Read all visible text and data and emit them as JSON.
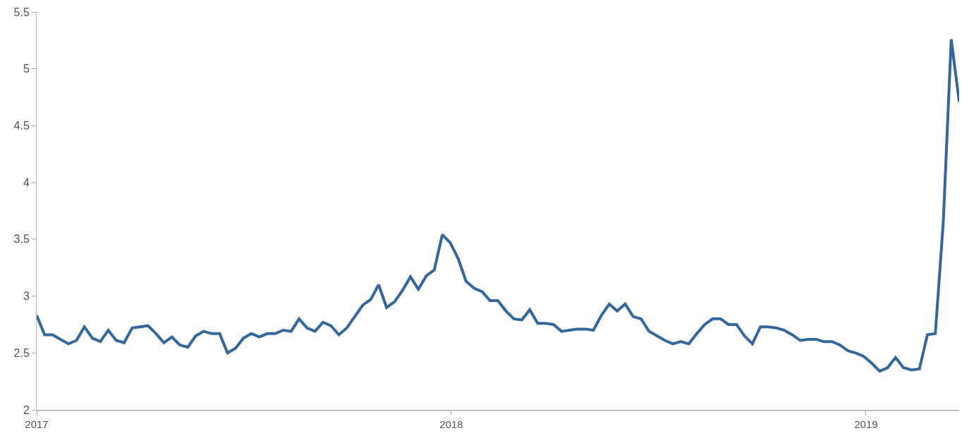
{
  "chart_data": {
    "type": "line",
    "x": [
      "2017-01-01",
      "2017-01-08",
      "2017-01-15",
      "2017-01-22",
      "2017-01-29",
      "2017-02-05",
      "2017-02-12",
      "2017-02-19",
      "2017-02-26",
      "2017-03-05",
      "2017-03-12",
      "2017-03-19",
      "2017-03-26",
      "2017-04-02",
      "2017-04-09",
      "2017-04-16",
      "2017-04-23",
      "2017-04-30",
      "2017-05-07",
      "2017-05-14",
      "2017-05-21",
      "2017-05-28",
      "2017-06-04",
      "2017-06-11",
      "2017-06-18",
      "2017-06-25",
      "2017-07-02",
      "2017-07-09",
      "2017-07-16",
      "2017-07-23",
      "2017-07-30",
      "2017-08-06",
      "2017-08-13",
      "2017-08-20",
      "2017-08-27",
      "2017-09-03",
      "2017-09-10",
      "2017-09-17",
      "2017-09-24",
      "2017-10-01",
      "2017-10-08",
      "2017-10-15",
      "2017-10-22",
      "2017-10-29",
      "2017-11-05",
      "2017-11-12",
      "2017-11-19",
      "2017-11-26",
      "2017-12-03",
      "2017-12-10",
      "2017-12-17",
      "2017-12-24",
      "2017-12-31",
      "2018-01-07",
      "2018-01-14",
      "2018-01-21",
      "2018-01-28",
      "2018-02-04",
      "2018-02-11",
      "2018-02-18",
      "2018-02-25",
      "2018-03-04",
      "2018-03-11",
      "2018-03-18",
      "2018-03-25",
      "2018-04-01",
      "2018-04-08",
      "2018-04-15",
      "2018-04-22",
      "2018-04-29",
      "2018-05-06",
      "2018-05-13",
      "2018-05-20",
      "2018-05-27",
      "2018-06-03",
      "2018-06-10",
      "2018-06-17",
      "2018-06-24",
      "2018-07-01",
      "2018-07-08",
      "2018-07-15",
      "2018-07-22",
      "2018-07-29",
      "2018-08-05",
      "2018-08-12",
      "2018-08-19",
      "2018-08-26",
      "2018-09-02",
      "2018-09-09",
      "2018-09-16",
      "2018-09-23",
      "2018-09-30",
      "2018-10-07",
      "2018-10-14",
      "2018-10-21",
      "2018-10-28",
      "2018-11-04",
      "2018-11-11",
      "2018-11-18",
      "2018-11-25",
      "2018-12-02",
      "2018-12-09",
      "2018-12-16",
      "2018-12-23",
      "2018-12-30",
      "2019-01-06",
      "2019-01-13",
      "2019-01-20",
      "2019-01-27",
      "2019-02-03",
      "2019-02-10",
      "2019-02-17",
      "2019-02-24",
      "2019-03-03",
      "2019-03-10",
      "2019-03-17",
      "2019-03-24"
    ],
    "series": [
      {
        "color": "#35679a",
        "values": [
          2.83,
          2.66,
          2.66,
          2.62,
          2.58,
          2.61,
          2.73,
          2.63,
          2.6,
          2.7,
          2.61,
          2.59,
          2.72,
          2.73,
          2.74,
          2.67,
          2.59,
          2.64,
          2.57,
          2.55,
          2.65,
          2.69,
          2.67,
          2.67,
          2.5,
          2.54,
          2.63,
          2.67,
          2.64,
          2.67,
          2.67,
          2.7,
          2.69,
          2.8,
          2.72,
          2.69,
          2.77,
          2.74,
          2.66,
          2.72,
          2.82,
          2.92,
          2.97,
          3.1,
          2.9,
          2.95,
          3.05,
          3.17,
          3.06,
          3.18,
          3.23,
          3.54,
          3.47,
          3.33,
          3.13,
          3.07,
          3.04,
          2.96,
          2.96,
          2.87,
          2.8,
          2.79,
          2.88,
          2.76,
          2.76,
          2.75,
          2.69,
          2.7,
          2.71,
          2.71,
          2.7,
          2.83,
          2.93,
          2.87,
          2.93,
          2.82,
          2.8,
          2.69,
          2.65,
          2.61,
          2.58,
          2.6,
          2.58,
          2.67,
          2.75,
          2.8,
          2.8,
          2.75,
          2.75,
          2.65,
          2.58,
          2.73,
          2.73,
          2.72,
          2.7,
          2.66,
          2.61,
          2.62,
          2.62,
          2.6,
          2.6,
          2.57,
          2.52,
          2.5,
          2.47,
          2.41,
          2.34,
          2.37,
          2.46,
          2.37,
          2.35,
          2.36,
          2.66,
          2.67,
          3.65,
          5.26,
          4.71
        ]
      }
    ],
    "xlim": [
      "2017-01-01",
      "2019-03-24"
    ],
    "xticks": [
      {
        "value": "2017-01-01",
        "label": "2017"
      },
      {
        "value": "2018-01-01",
        "label": "2018"
      },
      {
        "value": "2019-01-01",
        "label": "2019"
      }
    ],
    "ylim": [
      2,
      5.5
    ],
    "yticks": [
      2,
      2.5,
      3,
      3.5,
      4,
      4.5,
      5,
      5.5
    ],
    "marker": "none",
    "line_style": "solid"
  }
}
